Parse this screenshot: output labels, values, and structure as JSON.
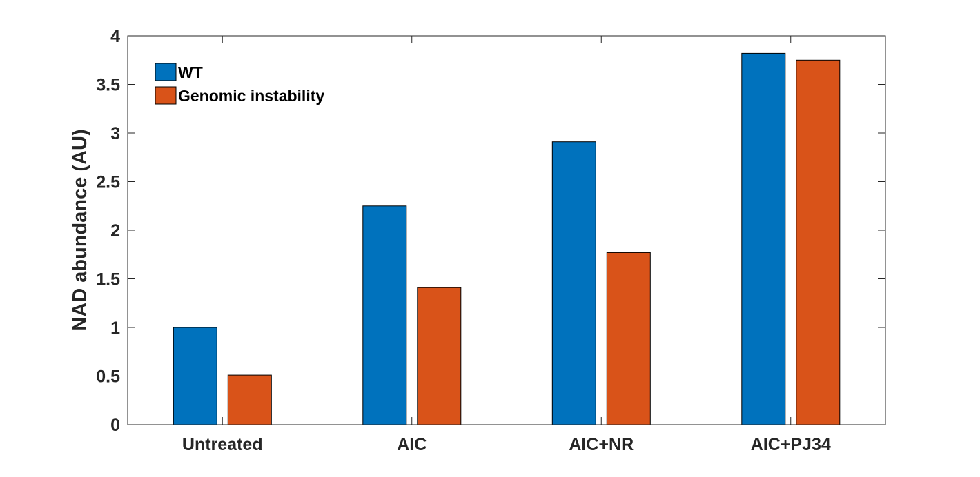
{
  "chart_data": {
    "type": "bar",
    "categories": [
      "Untreated",
      "AIC",
      "AIC+NR",
      "AIC+PJ34"
    ],
    "series": [
      {
        "name": "WT",
        "values": [
          1.0,
          2.25,
          2.91,
          3.82
        ],
        "color": "#0072BD"
      },
      {
        "name": "Genomic instability",
        "values": [
          0.51,
          1.41,
          1.77,
          3.75
        ],
        "color": "#D95319"
      }
    ],
    "xlabel": "",
    "ylabel": "NAD abundance (AU)",
    "ylim": [
      0,
      4
    ],
    "yticks": [
      0,
      0.5,
      1,
      1.5,
      2,
      2.5,
      3,
      3.5,
      4
    ],
    "ytick_labels": [
      "0",
      "0.5",
      "1",
      "1.5",
      "2",
      "2.5",
      "3",
      "3.5",
      "4"
    ],
    "grid": false,
    "legend_position": "top-left"
  }
}
